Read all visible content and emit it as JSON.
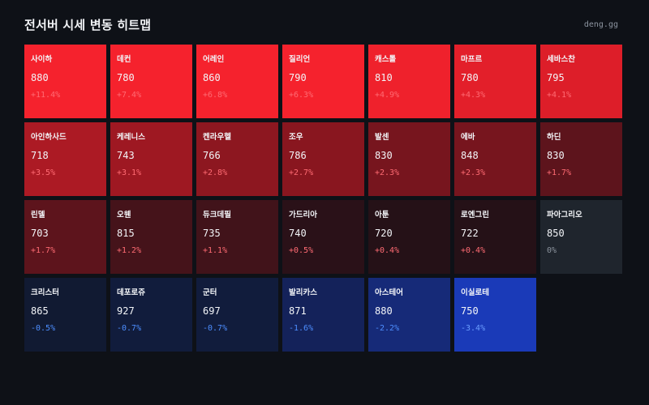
{
  "header": {
    "title": "전서버 시세 변동 히트맵",
    "brand": "deng.gg"
  },
  "cells": [
    {
      "name": "사이하",
      "price": "880",
      "change": "+11.4%",
      "bg": "#f5222d",
      "change_color": "#ff6b73"
    },
    {
      "name": "데컨",
      "price": "780",
      "change": "+7.4%",
      "bg": "#f5222d",
      "change_color": "#ff6b73"
    },
    {
      "name": "어레인",
      "price": "860",
      "change": "+6.8%",
      "bg": "#f5222d",
      "change_color": "#ff6b73"
    },
    {
      "name": "질리언",
      "price": "790",
      "change": "+6.3%",
      "bg": "#f5222d",
      "change_color": "#ff6b73"
    },
    {
      "name": "캐스톨",
      "price": "810",
      "change": "+4.9%",
      "bg": "#ef212c",
      "change_color": "#ff6b73"
    },
    {
      "name": "마프르",
      "price": "780",
      "change": "+4.3%",
      "bg": "#e31f2a",
      "change_color": "#ff6b73"
    },
    {
      "name": "세바스찬",
      "price": "795",
      "change": "+4.1%",
      "bg": "#dd1e29",
      "change_color": "#ff6b73"
    },
    {
      "name": "아인하사드",
      "price": "718",
      "change": "+3.5%",
      "bg": "#ac1a24",
      "change_color": "#ff6b73"
    },
    {
      "name": "케레니스",
      "price": "743",
      "change": "+3.1%",
      "bg": "#9e1822",
      "change_color": "#ff6b73"
    },
    {
      "name": "켄라우헬",
      "price": "766",
      "change": "+2.8%",
      "bg": "#8d1720",
      "change_color": "#ff6b73"
    },
    {
      "name": "조우",
      "price": "786",
      "change": "+2.7%",
      "bg": "#89161f",
      "change_color": "#ff6b73"
    },
    {
      "name": "발센",
      "price": "830",
      "change": "+2.3%",
      "bg": "#77151e",
      "change_color": "#ff6b73"
    },
    {
      "name": "에바",
      "price": "848",
      "change": "+2.3%",
      "bg": "#77151e",
      "change_color": "#ff6b73"
    },
    {
      "name": "하딘",
      "price": "830",
      "change": "+1.7%",
      "bg": "#5d141c",
      "change_color": "#ff6b73"
    },
    {
      "name": "린델",
      "price": "703",
      "change": "+1.7%",
      "bg": "#5d141c",
      "change_color": "#ff6b73"
    },
    {
      "name": "오웬",
      "price": "815",
      "change": "+1.2%",
      "bg": "#45131a",
      "change_color": "#ff6b73"
    },
    {
      "name": "듀크데필",
      "price": "735",
      "change": "+1.1%",
      "bg": "#41131a",
      "change_color": "#ff6b73"
    },
    {
      "name": "가드리아",
      "price": "740",
      "change": "+0.5%",
      "bg": "#2a1118",
      "change_color": "#ff6b73"
    },
    {
      "name": "아툰",
      "price": "720",
      "change": "+0.4%",
      "bg": "#251117",
      "change_color": "#ff6b73"
    },
    {
      "name": "로엔그린",
      "price": "722",
      "change": "+0.4%",
      "bg": "#251117",
      "change_color": "#ff6b73"
    },
    {
      "name": "파아그리오",
      "price": "850",
      "change": "0%",
      "bg": "#1f252d",
      "change_color": "#8c949e"
    },
    {
      "name": "크리스터",
      "price": "865",
      "change": "-0.5%",
      "bg": "#111a32",
      "change_color": "#4d8eff"
    },
    {
      "name": "데포로쥬",
      "price": "927",
      "change": "-0.7%",
      "bg": "#111c3c",
      "change_color": "#4d8eff"
    },
    {
      "name": "군터",
      "price": "697",
      "change": "-0.7%",
      "bg": "#111c3c",
      "change_color": "#4d8eff"
    },
    {
      "name": "발리카스",
      "price": "871",
      "change": "-1.6%",
      "bg": "#14225a",
      "change_color": "#4d8eff"
    },
    {
      "name": "아스테어",
      "price": "880",
      "change": "-2.2%",
      "bg": "#162a78",
      "change_color": "#4d8eff"
    },
    {
      "name": "이실로테",
      "price": "750",
      "change": "-3.4%",
      "bg": "#1a3ab8",
      "change_color": "#6b9dff"
    }
  ]
}
